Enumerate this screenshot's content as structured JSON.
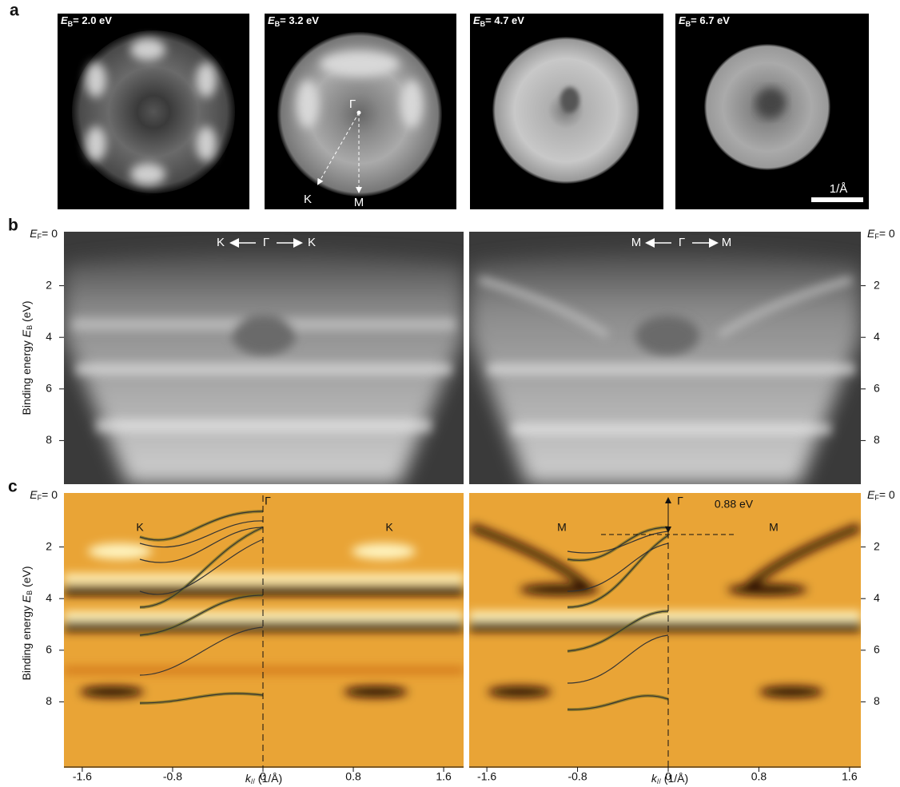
{
  "panel_labels": [
    "a",
    "b",
    "c"
  ],
  "panel_a": {
    "images": [
      {
        "symbol": "E",
        "subscript": "B",
        "text": "= 2.0 eV"
      },
      {
        "symbol": "E",
        "subscript": "B",
        "text": "= 3.2 eV"
      },
      {
        "symbol": "E",
        "subscript": "B",
        "text": "= 4.7 eV"
      },
      {
        "symbol": "E",
        "subscript": "B",
        "text": "= 6.7 eV"
      }
    ],
    "gamma": "Γ",
    "k": "K",
    "m": "M",
    "scale_bar": "1/Å"
  },
  "panel_b": {
    "left_direction": [
      "K",
      "Γ",
      "K"
    ],
    "right_direction": [
      "M",
      "Γ",
      "M"
    ]
  },
  "axis": {
    "ef_symbol": "E",
    "ef_subscript": "F",
    "ef_text": "= 0",
    "ylabel_text": "Binding energy ",
    "ylabel_symbol": "E",
    "ylabel_subscript": "B",
    "ylabel_unit": " (eV)",
    "yticks": [
      2,
      4,
      6,
      8
    ]
  },
  "panel_c": {
    "left_labels": [
      "K",
      "Γ",
      "K"
    ],
    "right_labels": [
      "M",
      "Γ",
      "M"
    ],
    "gap": "0.88 eV",
    "xticks": [
      -1.6,
      -0.8,
      0,
      0.8,
      1.6
    ],
    "xlabel_symbol": "k",
    "xlabel_subscript": "//",
    "xlabel_unit": " (1/Å)"
  }
}
